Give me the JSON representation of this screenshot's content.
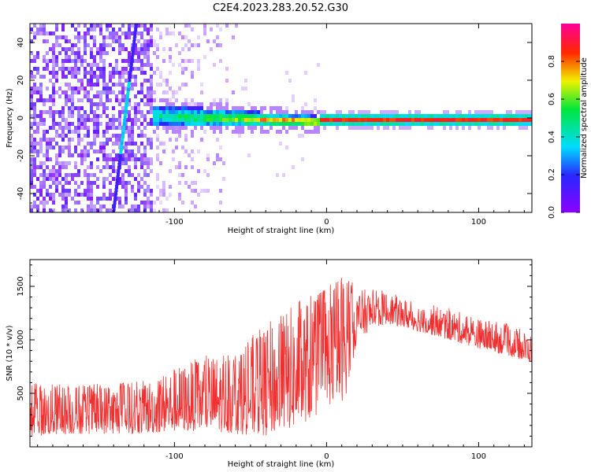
{
  "title": "C2E4.2023.283.20.52.G30",
  "colors": {
    "snr_line": "#f03030",
    "frame": "#000000",
    "background": "#ffffff"
  },
  "chart_data": [
    {
      "type": "heatmap",
      "xlabel": "Height of straight line (km)",
      "ylabel": "Frequency (Hz)",
      "xlim": [
        -195,
        135
      ],
      "ylim": [
        -50,
        50
      ],
      "xticks": [
        -100,
        0,
        100
      ],
      "yticks": [
        -40,
        -20,
        0,
        20,
        40
      ],
      "colorbar": {
        "label": "Normalized spectral amplitude",
        "range": [
          0.0,
          1.0
        ],
        "ticks": [
          "0.0",
          "0.2",
          "0.4",
          "0.6",
          "0.8"
        ],
        "colormap": "rainbow (purple to red to magenta)"
      },
      "features": [
        {
          "name": "broadband scatter",
          "x_range": [
            -195,
            -115
          ],
          "freq_range": [
            -50,
            50
          ],
          "amplitude": 0.15
        },
        {
          "name": "diagonal streak",
          "x_start": -140,
          "x_end": -125,
          "freq_start": -50,
          "freq_end": 50,
          "amplitude": 0.3
        },
        {
          "name": "central line broadening",
          "x_range": [
            -115,
            0
          ],
          "freq_center": 0,
          "amplitude": 0.55
        },
        {
          "name": "narrow central line",
          "x_range": [
            0,
            135
          ],
          "freq_center": 0,
          "amplitude": 0.9
        }
      ]
    },
    {
      "type": "line",
      "xlabel": "Height of straight line (km)",
      "ylabel": "SNR (10 * v/v)",
      "xlim": [
        -195,
        135
      ],
      "ylim": [
        0,
        1750
      ],
      "xticks": [
        -100,
        0,
        100
      ],
      "yticks": [
        500,
        1000,
        1500
      ],
      "envelope": {
        "x": [
          -195,
          -160,
          -120,
          -100,
          -80,
          -60,
          -40,
          -20,
          -5,
          5,
          12,
          20,
          30,
          40,
          60,
          80,
          100,
          120,
          135
        ],
        "lower": [
          100,
          120,
          120,
          140,
          150,
          120,
          100,
          180,
          300,
          420,
          430,
          1000,
          1100,
          1150,
          1080,
          1000,
          920,
          850,
          780
        ],
        "upper": [
          600,
          580,
          620,
          750,
          850,
          900,
          1150,
          1350,
          1450,
          1550,
          1720,
          1450,
          1500,
          1450,
          1350,
          1300,
          1200,
          1150,
          1050
        ]
      }
    }
  ]
}
